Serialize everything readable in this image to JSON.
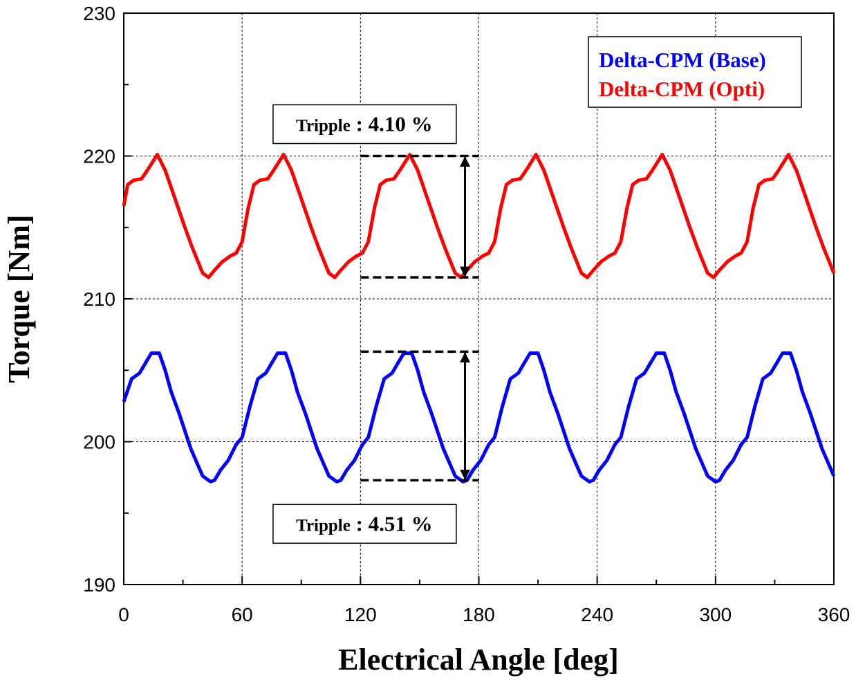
{
  "chart_data": {
    "type": "line",
    "xlabel": "Electrical Angle [deg]",
    "ylabel": "Torque [Nm]",
    "xlim": [
      0,
      360
    ],
    "xticks": [
      0,
      60,
      120,
      180,
      240,
      300,
      360
    ],
    "ylim": [
      190,
      230
    ],
    "yticks": [
      190,
      200,
      210,
      220,
      230
    ],
    "grid": true,
    "legend": "upper right",
    "series": [
      {
        "name": "Delta-CPM (Base)",
        "color": "#0000ff",
        "x": [
          0,
          4,
          8,
          11,
          14,
          18,
          21,
          24,
          28,
          34,
          40,
          44,
          46,
          49,
          53,
          57,
          60,
          64,
          68,
          72,
          75,
          78,
          82,
          85,
          88,
          92,
          98,
          104,
          108,
          110,
          113,
          117,
          121,
          124,
          128,
          132,
          136,
          139,
          142,
          146,
          149,
          152,
          156,
          162,
          168,
          172,
          174,
          177,
          181,
          185,
          188,
          192,
          196,
          200,
          203,
          206,
          210,
          213,
          216,
          220,
          226,
          232,
          236,
          238,
          241,
          245,
          249,
          252,
          256,
          260,
          264,
          267,
          270,
          274,
          277,
          280,
          284,
          290,
          296,
          300,
          302,
          305,
          309,
          313,
          316,
          320,
          324,
          328,
          331,
          334,
          338,
          341,
          344,
          348,
          354,
          360
        ],
        "values": [
          202.8,
          204.4,
          204.8,
          205.5,
          206.2,
          206.2,
          205,
          203.5,
          202,
          199.5,
          197.6,
          197.2,
          197.3,
          198,
          198.7,
          199.8,
          200.3,
          202.5,
          204.4,
          204.8,
          205.5,
          206.2,
          206.2,
          205,
          203.5,
          202,
          199.5,
          197.6,
          197.2,
          197.3,
          198,
          198.7,
          199.8,
          200.3,
          202.5,
          204.4,
          204.8,
          205.5,
          206.2,
          206.2,
          205,
          203.5,
          202,
          199.5,
          197.6,
          197.2,
          197.3,
          198,
          198.7,
          199.8,
          200.3,
          202.5,
          204.4,
          204.8,
          205.5,
          206.2,
          206.2,
          205,
          203.5,
          202,
          199.5,
          197.6,
          197.2,
          197.3,
          198,
          198.7,
          199.8,
          200.3,
          202.5,
          204.4,
          204.8,
          205.5,
          206.2,
          206.2,
          205,
          203.5,
          202,
          199.5,
          197.6,
          197.2,
          197.3,
          198,
          198.7,
          199.8,
          200.3,
          202.5,
          204.4,
          204.8,
          205.5,
          206.2,
          206.2,
          205,
          203.5,
          202,
          199.5,
          197.6
        ]
      },
      {
        "name": "Delta-CPM (Opti)",
        "color": "#ff0000",
        "x": [
          0,
          2,
          5,
          9,
          12,
          17,
          21,
          26,
          31,
          35,
          40,
          43,
          46,
          50,
          54,
          57,
          60,
          63,
          66,
          69,
          73,
          76,
          81,
          85,
          90,
          95,
          99,
          104,
          107,
          110,
          114,
          118,
          121,
          124,
          127,
          130,
          133,
          137,
          140,
          145,
          149,
          154,
          159,
          163,
          168,
          171,
          174,
          178,
          182,
          185,
          188,
          191,
          194,
          197,
          201,
          204,
          209,
          213,
          218,
          223,
          227,
          232,
          235,
          238,
          242,
          246,
          249,
          252,
          255,
          258,
          261,
          265,
          268,
          273,
          277,
          282,
          287,
          291,
          296,
          299,
          302,
          306,
          310,
          313,
          316,
          319,
          322,
          325,
          329,
          332,
          337,
          341,
          346,
          351,
          355,
          360
        ],
        "values": [
          216.5,
          218,
          218.3,
          218.4,
          219,
          220.1,
          219,
          217,
          215,
          213.5,
          211.8,
          211.5,
          212,
          212.6,
          213,
          213.2,
          214,
          216.3,
          218,
          218.3,
          218.4,
          219,
          220.1,
          219,
          217,
          215,
          213.5,
          211.8,
          211.5,
          212,
          212.6,
          213,
          213.2,
          214,
          216.3,
          218,
          218.3,
          218.4,
          219,
          220.1,
          219,
          217,
          215,
          213.5,
          211.8,
          211.5,
          212,
          212.6,
          213,
          213.2,
          214,
          216.3,
          218,
          218.3,
          218.4,
          219,
          220.1,
          219,
          217,
          215,
          213.5,
          211.8,
          211.5,
          212,
          212.6,
          213,
          213.2,
          214,
          216.3,
          218,
          218.3,
          218.4,
          219,
          220.1,
          219,
          217,
          215,
          213.5,
          211.8,
          211.5,
          212,
          212.6,
          213,
          213.2,
          214,
          216.3,
          218,
          218.3,
          218.4,
          219,
          220.1,
          219,
          217,
          215,
          213.5,
          211.8
        ]
      }
    ],
    "ripple_markers": [
      {
        "xlim": [
          120,
          180
        ],
        "ylim": [
          211.5,
          220
        ],
        "arrow_x": 173,
        "label_prefix": "Tripple",
        "label": ": 4.10 %",
        "position": "above"
      },
      {
        "xlim": [
          120,
          180
        ],
        "ylim": [
          197.3,
          206.3
        ],
        "arrow_x": 173,
        "label_prefix": "Tripple",
        "label": ": 4.51 %",
        "position": "below"
      }
    ]
  }
}
